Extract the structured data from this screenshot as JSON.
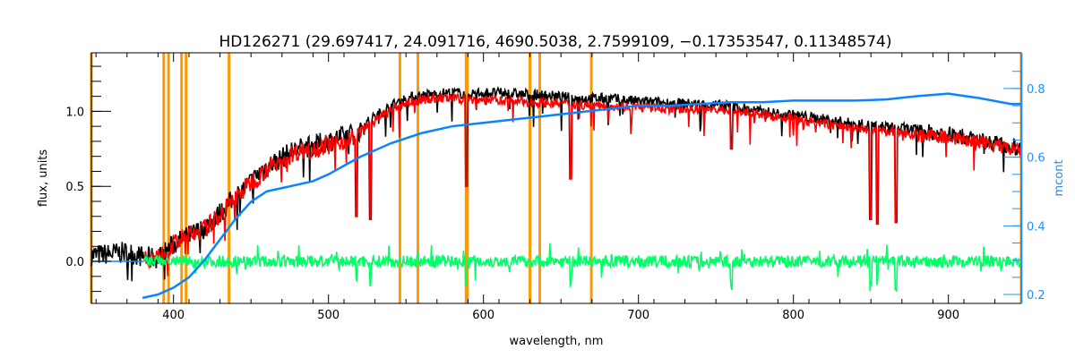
{
  "chart_data": {
    "type": "line",
    "title": "HD126271    (29.697417, 24.091716, 4690.5038, 2.7599109, −0.17353547, 0.11348574)",
    "xlabel": "wavelength, nm",
    "ylabel": "flux, units",
    "y2label": "mcont",
    "xlim": [
      347,
      947
    ],
    "ylim": [
      -0.28,
      1.39
    ],
    "y2lim": [
      0.174,
      0.904
    ],
    "xticks": [
      400,
      500,
      600,
      700,
      800,
      900
    ],
    "yticks": [
      0.0,
      0.5,
      1.0
    ],
    "ytick_labels": [
      "0.0",
      "0.5",
      "1.0"
    ],
    "y2ticks": [
      0.2,
      0.4,
      0.6,
      0.8
    ],
    "y2tick_labels": [
      "0.2",
      "0.4",
      "0.6",
      "0.8"
    ],
    "colors": {
      "observed": "#000000",
      "model": "#ff0000",
      "residual": "#00ff66",
      "mcont": "#0a84ff",
      "masks": "#ff9900",
      "axis2": "#1e90ff"
    },
    "mask_lines": [
      347,
      393.7,
      396.8,
      405.2,
      408.1,
      435.8,
      546.1,
      557.7,
      588.8,
      589.6,
      630.0,
      636.3,
      669.6,
      947
    ],
    "series": [
      {
        "name": "observed",
        "axis": "left",
        "x": [
          347,
          360,
          370,
          380,
          390,
          400,
          410,
          420,
          430,
          440,
          450,
          460,
          470,
          480,
          490,
          500,
          510,
          520,
          530,
          540,
          550,
          560,
          570,
          580,
          590,
          600,
          620,
          640,
          660,
          680,
          700,
          720,
          740,
          760,
          780,
          800,
          820,
          840,
          860,
          880,
          900,
          920,
          940,
          947
        ],
        "y": [
          0.07,
          0.08,
          0.09,
          0.06,
          0.05,
          0.14,
          0.2,
          0.25,
          0.35,
          0.46,
          0.56,
          0.66,
          0.72,
          0.78,
          0.8,
          0.83,
          0.86,
          0.9,
          0.98,
          1.05,
          1.1,
          1.12,
          1.13,
          1.14,
          1.13,
          1.14,
          1.13,
          1.12,
          1.1,
          1.1,
          1.08,
          1.07,
          1.06,
          1.05,
          1.01,
          0.99,
          0.96,
          0.93,
          0.91,
          0.89,
          0.87,
          0.83,
          0.79,
          0.77
        ]
      },
      {
        "name": "model",
        "axis": "left",
        "x": [
          381,
          390,
          400,
          410,
          420,
          430,
          440,
          450,
          460,
          470,
          480,
          490,
          500,
          510,
          520,
          530,
          540,
          550,
          560,
          570,
          580,
          590,
          600,
          620,
          640,
          660,
          680,
          700,
          720,
          740,
          760,
          780,
          800,
          820,
          840,
          860,
          880,
          900,
          920,
          940,
          947
        ],
        "y": [
          0.05,
          0.05,
          0.14,
          0.2,
          0.24,
          0.34,
          0.45,
          0.55,
          0.64,
          0.7,
          0.76,
          0.78,
          0.8,
          0.83,
          0.87,
          0.95,
          1.02,
          1.07,
          1.09,
          1.1,
          1.1,
          1.09,
          1.09,
          1.08,
          1.07,
          1.06,
          1.05,
          1.04,
          1.03,
          1.03,
          1.02,
          0.99,
          0.96,
          0.93,
          0.9,
          0.88,
          0.86,
          0.85,
          0.81,
          0.77,
          0.75
        ]
      },
      {
        "name": "residual",
        "axis": "left",
        "x": [
          381,
          947
        ],
        "y": [
          0.0,
          0.0
        ]
      },
      {
        "name": "mcont",
        "axis": "right",
        "x": [
          380,
          390,
          400,
          410,
          420,
          430,
          440,
          450,
          460,
          470,
          480,
          490,
          500,
          520,
          540,
          560,
          580,
          600,
          620,
          640,
          660,
          680,
          700,
          720,
          740,
          760,
          780,
          800,
          820,
          840,
          860,
          880,
          900,
          920,
          940,
          947
        ],
        "y": [
          0.19,
          0.2,
          0.22,
          0.25,
          0.3,
          0.36,
          0.42,
          0.47,
          0.5,
          0.51,
          0.52,
          0.53,
          0.55,
          0.6,
          0.64,
          0.67,
          0.69,
          0.7,
          0.71,
          0.72,
          0.73,
          0.74,
          0.75,
          0.75,
          0.755,
          0.76,
          0.76,
          0.765,
          0.765,
          0.765,
          0.768,
          0.778,
          0.785,
          0.772,
          0.755,
          0.755
        ]
      },
      {
        "name": "zero_level",
        "axis": "left",
        "x": [
          347,
          381
        ],
        "y": [
          0.0,
          0.0
        ]
      }
    ],
    "absorption_lines": [
      {
        "x": 518,
        "min": 0.3
      },
      {
        "x": 527,
        "min": 0.28
      },
      {
        "x": 589,
        "min": 0.5
      },
      {
        "x": 656.3,
        "min": 0.55
      },
      {
        "x": 760,
        "min": 0.75
      },
      {
        "x": 849.8,
        "min": 0.28
      },
      {
        "x": 854.2,
        "min": 0.25
      },
      {
        "x": 866.2,
        "min": 0.26
      }
    ]
  }
}
